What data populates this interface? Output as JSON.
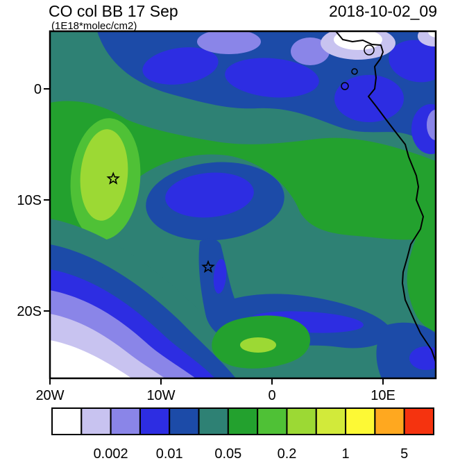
{
  "header": {
    "title": "CO col BB 17 Sep",
    "subtitle": "(1E18*molec/cm2)",
    "timestamp": "2018-10-02_09"
  },
  "axes": {
    "y_ticks": [
      {
        "label": "0",
        "lat": 0
      },
      {
        "label": "10S",
        "lat": -10
      },
      {
        "label": "20S",
        "lat": -20
      }
    ],
    "x_ticks": [
      {
        "label": "20W",
        "lon": -20
      },
      {
        "label": "10W",
        "lon": -10
      },
      {
        "label": "0",
        "lon": 0
      },
      {
        "label": "10E",
        "lon": 10
      }
    ]
  },
  "chart_data": {
    "type": "heatmap",
    "subtype": "filled-contour-map",
    "title": "CO col BB 17 Sep",
    "units": "1E18*molec/cm2",
    "model_time": "2018-10-02_09",
    "lon_range": [
      -20,
      14.75
    ],
    "lat_range": [
      -26.1,
      5.2
    ],
    "grid": "off",
    "colorbar_position": "bottom",
    "contour_levels": [
      0.001,
      0.002,
      0.005,
      0.01,
      0.02,
      0.05,
      0.1,
      0.2,
      0.5,
      1,
      2,
      5
    ],
    "colorbar_labels": [
      "0.002",
      "0.01",
      "0.05",
      "0.2",
      "1",
      "5"
    ],
    "palette": [
      "#ffffff",
      "#c8c3f0",
      "#8a85e8",
      "#2d2de2",
      "#1c4ba8",
      "#2e8174",
      "#23a12e",
      "#4fc136",
      "#9cd934",
      "#d2ea3a",
      "#fdf935",
      "#ffa81f",
      "#f5330f"
    ],
    "markers": [
      {
        "name": "star-1",
        "lon": -14.3,
        "lat": -8.1
      },
      {
        "name": "star-2",
        "lon": -5.75,
        "lat": -16.05
      }
    ],
    "field_description": "CO column from biomass burning: broad 0.02-0.05 teal background over SE Atlantic, 0.05-0.2 green band arcing from ~15W across to the Angola coast with a 0.2-0.5 light-green ridge near 14W/8S, low-value blue/purple minima north of the equator, a blue eddy near 7W/8S, and white/purple minimum in the SW corner"
  }
}
